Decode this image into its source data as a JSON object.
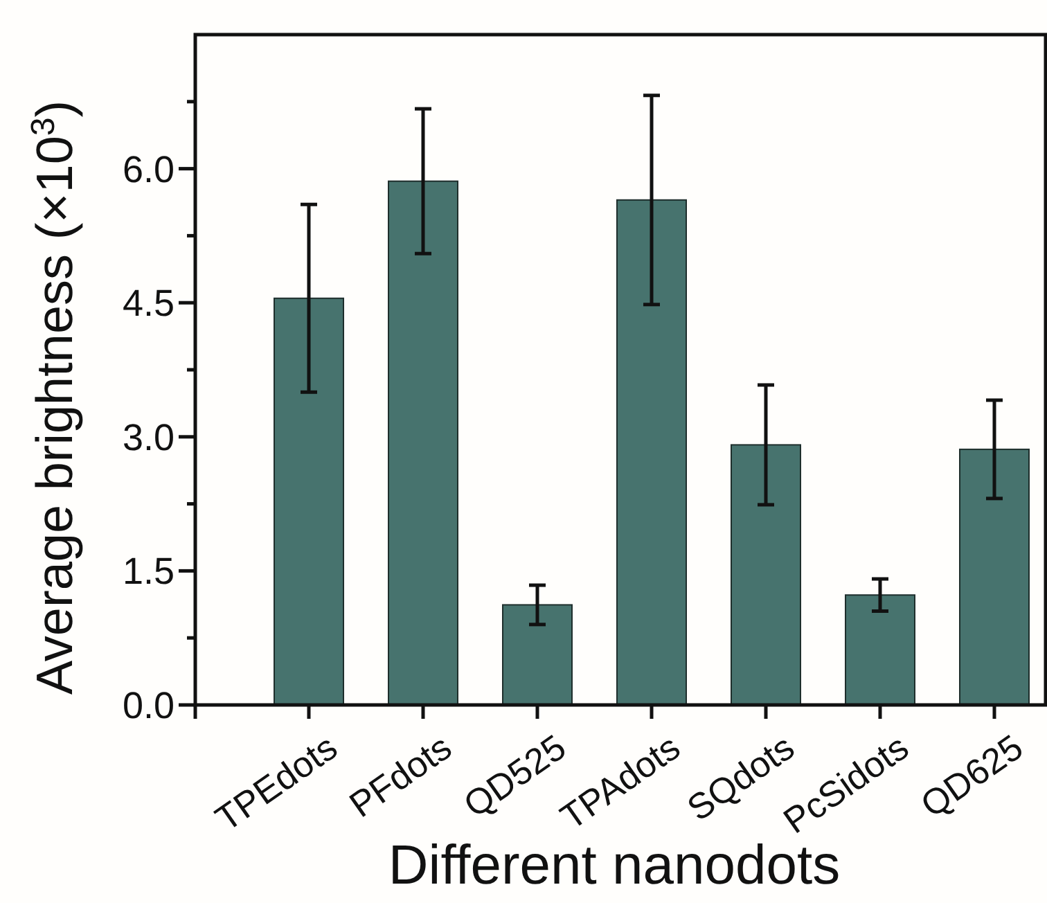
{
  "chart_data": {
    "type": "bar",
    "xlabel": "Different nanodots",
    "ylabel": "Average brightness (×10$^{3}$)",
    "categories": [
      "TPEdots",
      "PFdots",
      "QD525",
      "TPAdots",
      "SQdots",
      "PcSidots",
      "QD625"
    ],
    "values": [
      4.55,
      5.86,
      1.12,
      5.65,
      2.91,
      1.23,
      2.86
    ],
    "errors": [
      1.05,
      0.81,
      0.22,
      1.17,
      0.67,
      0.18,
      0.55
    ],
    "color": "#47736e",
    "ylim": [
      0,
      7.5
    ],
    "yticks": [
      {
        "value": 0,
        "label": "0.0"
      },
      {
        "value": 0.75,
        "label": null
      },
      1.5,
      {
        "value": 2.25,
        "label": null
      },
      {
        "value": 3,
        "label": "3.0"
      },
      {
        "value": 3.75,
        "label": null
      },
      4.5,
      {
        "value": 5.25,
        "label": null
      },
      {
        "value": 6,
        "label": "6.0"
      },
      {
        "value": 6.75,
        "label": null
      }
    ],
    "grid": false
  }
}
